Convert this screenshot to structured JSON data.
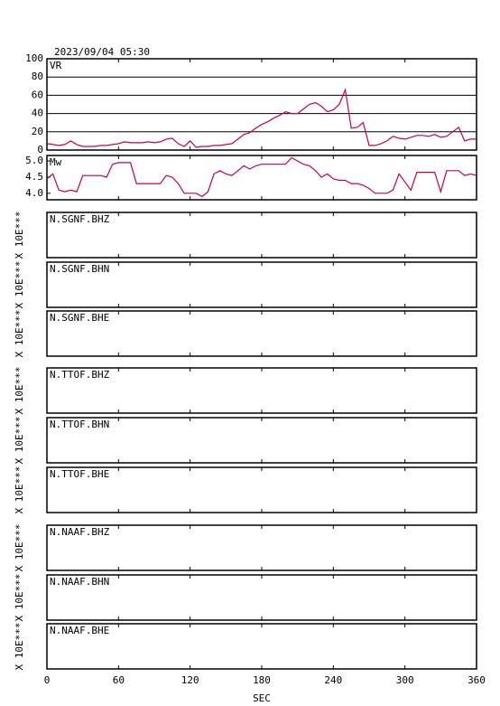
{
  "chart_data": [
    {
      "type": "line",
      "title": "2023/09/04 05:30",
      "label": "VR",
      "xlim": [
        0,
        360
      ],
      "ylim": [
        0,
        100
      ],
      "yticks": [
        0,
        20,
        40,
        60,
        80,
        100
      ],
      "grid": true,
      "x": [
        0,
        5,
        10,
        15,
        20,
        25,
        30,
        35,
        40,
        45,
        50,
        55,
        60,
        65,
        70,
        75,
        80,
        85,
        90,
        95,
        100,
        105,
        110,
        115,
        120,
        125,
        130,
        135,
        140,
        145,
        150,
        155,
        160,
        165,
        170,
        175,
        180,
        185,
        190,
        195,
        200,
        205,
        210,
        215,
        220,
        225,
        230,
        235,
        240,
        245,
        250,
        255,
        260,
        265,
        270,
        275,
        280,
        285,
        290,
        295,
        300,
        305,
        310,
        315,
        320,
        325,
        330,
        335,
        340,
        345,
        350,
        355,
        360
      ],
      "series": [
        {
          "color": "#cc0044",
          "values": [
            7,
            6,
            5,
            6,
            10,
            6,
            4,
            4,
            4,
            5,
            5,
            6,
            7,
            9,
            8,
            8,
            8,
            9,
            8,
            9,
            12,
            13,
            7,
            4,
            10,
            3,
            4,
            4,
            5,
            5,
            6,
            7,
            12,
            17,
            19,
            24,
            28,
            31,
            35,
            38,
            42,
            40,
            40,
            45,
            50,
            52,
            48,
            42,
            44,
            50,
            66,
            24,
            25,
            30,
            5,
            5,
            7,
            10,
            15,
            13,
            12,
            14,
            16,
            16,
            15,
            17,
            14,
            15,
            20,
            25,
            10,
            12,
            12
          ]
        }
      ]
    },
    {
      "type": "line",
      "label": "Mw",
      "xlim": [
        0,
        360
      ],
      "ylim": [
        3.8,
        5.17
      ],
      "yticks": [
        {
          "value": 4,
          "label": "4.0"
        },
        4.5,
        {
          "value": 5,
          "label": "5.0"
        }
      ],
      "grid": false,
      "x": [
        0,
        5,
        10,
        15,
        20,
        25,
        30,
        35,
        40,
        45,
        50,
        55,
        60,
        65,
        70,
        75,
        80,
        85,
        90,
        95,
        100,
        105,
        110,
        115,
        120,
        125,
        130,
        135,
        140,
        145,
        150,
        155,
        160,
        165,
        170,
        175,
        180,
        185,
        190,
        195,
        200,
        205,
        210,
        215,
        220,
        225,
        230,
        235,
        240,
        245,
        250,
        255,
        260,
        265,
        270,
        275,
        280,
        285,
        290,
        295,
        300,
        305,
        310,
        315,
        320,
        325,
        330,
        335,
        340,
        345,
        350,
        355,
        360
      ],
      "series": [
        {
          "color": "#cc0044",
          "values": [
            4.45,
            4.6,
            4.1,
            4.05,
            4.1,
            4.05,
            4.55,
            4.55,
            4.55,
            4.55,
            4.5,
            4.9,
            4.95,
            4.95,
            4.95,
            4.3,
            4.3,
            4.3,
            4.3,
            4.3,
            4.55,
            4.5,
            4.3,
            4.0,
            4.0,
            4.0,
            3.9,
            4.05,
            4.6,
            4.7,
            4.6,
            4.55,
            4.7,
            4.85,
            4.75,
            4.85,
            4.9,
            4.9,
            4.9,
            4.9,
            4.9,
            5.1,
            5.0,
            4.9,
            4.85,
            4.7,
            4.5,
            4.6,
            4.45,
            4.4,
            4.4,
            4.3,
            4.3,
            4.25,
            4.15,
            4.0,
            4.0,
            4.0,
            4.1,
            4.6,
            4.35,
            4.1,
            4.65,
            4.65,
            4.65,
            4.65,
            4.05,
            4.7,
            4.7,
            4.7,
            4.55,
            4.6,
            4.55
          ]
        }
      ]
    },
    {
      "type": "trace",
      "label": "N.SGNF.BHZ",
      "y_label": "X 10E***",
      "xlim": [
        0,
        360
      ]
    },
    {
      "type": "trace",
      "label": "N.SGNF.BHN",
      "y_label": "X 10E***",
      "xlim": [
        0,
        360
      ]
    },
    {
      "type": "trace",
      "label": "N.SGNF.BHE",
      "y_label": "X 10E***",
      "xlim": [
        0,
        360
      ]
    },
    {
      "type": "trace",
      "label": "N.TTOF.BHZ",
      "y_label": "X 10E***",
      "xlim": [
        0,
        360
      ]
    },
    {
      "type": "trace",
      "label": "N.TTOF.BHN",
      "y_label": "X 10E***",
      "xlim": [
        0,
        360
      ]
    },
    {
      "type": "trace",
      "label": "N.TTOF.BHE",
      "y_label": "X 10E***",
      "xlim": [
        0,
        360
      ]
    },
    {
      "type": "trace",
      "label": "N.NAAF.BHZ",
      "y_label": "X 10E***",
      "xlim": [
        0,
        360
      ]
    },
    {
      "type": "trace",
      "label": "N.NAAF.BHN",
      "y_label": "X 10E***",
      "xlim": [
        0,
        360
      ]
    },
    {
      "type": "trace",
      "label": "N.NAAF.BHE",
      "y_label": "X 10E***",
      "xlim": [
        0,
        360
      ],
      "xticks": [
        0,
        60,
        120,
        180,
        240,
        300,
        360
      ],
      "x_label": "SEC"
    }
  ]
}
